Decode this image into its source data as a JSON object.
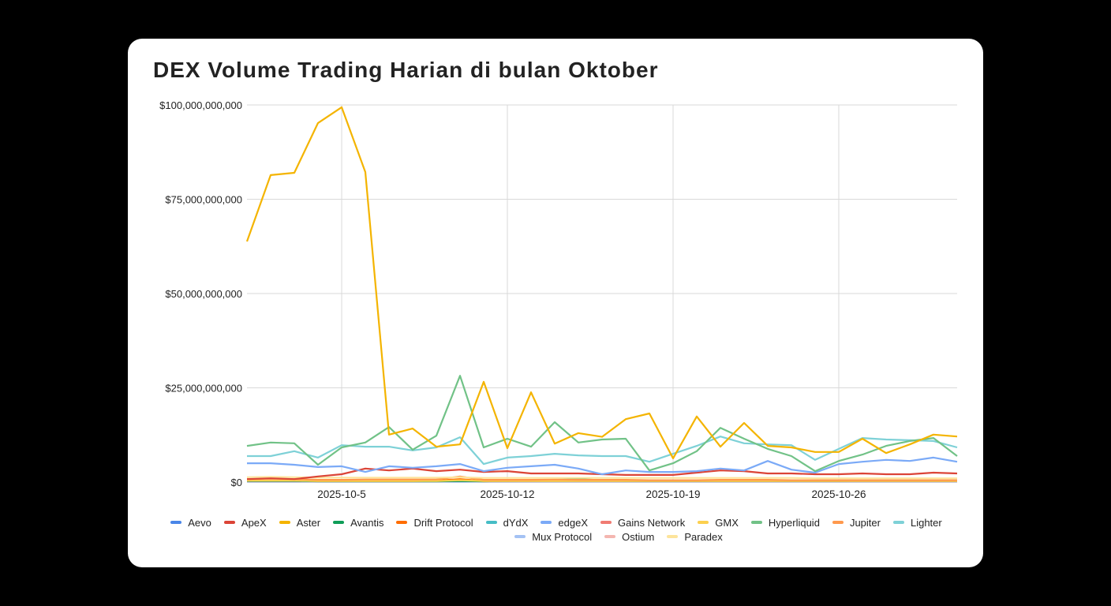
{
  "title": "DEX Volume Trading Harian di bulan Oktober",
  "chart_data": {
    "type": "line",
    "title": "DEX Volume Trading Harian di bulan Oktober",
    "xlabel": "",
    "ylabel": "",
    "ylim": [
      0,
      100000000000
    ],
    "y_ticks": [
      "$0",
      "$25,000,000,000",
      "$50,000,000,000",
      "$75,000,000,000",
      "$100,000,000,000"
    ],
    "x_ticks": [
      "2025-10-5",
      "2025-10-12",
      "2025-10-19",
      "2025-10-26"
    ],
    "x": [
      "2025-10-1",
      "2025-10-2",
      "2025-10-3",
      "2025-10-4",
      "2025-10-5",
      "2025-10-6",
      "2025-10-7",
      "2025-10-8",
      "2025-10-9",
      "2025-10-10",
      "2025-10-11",
      "2025-10-12",
      "2025-10-13",
      "2025-10-14",
      "2025-10-15",
      "2025-10-16",
      "2025-10-17",
      "2025-10-18",
      "2025-10-19",
      "2025-10-20",
      "2025-10-21",
      "2025-10-22",
      "2025-10-23",
      "2025-10-24",
      "2025-10-25",
      "2025-10-26",
      "2025-10-27",
      "2025-10-28",
      "2025-10-29",
      "2025-10-30",
      "2025-10-31"
    ],
    "grid": true,
    "legend_position": "bottom",
    "value_unit": "USD billions",
    "series": [
      {
        "name": "Aevo",
        "color": "#4a86e8",
        "values": [
          0.2,
          0.2,
          0.2,
          0.2,
          0.2,
          0.2,
          0.2,
          0.2,
          0.2,
          0.2,
          0.2,
          0.2,
          0.2,
          0.2,
          0.2,
          0.2,
          0.2,
          0.2,
          0.2,
          0.2,
          0.2,
          0.2,
          0.2,
          0.2,
          0.2,
          0.2,
          0.2,
          0.2,
          0.2,
          0.2,
          0.2
        ]
      },
      {
        "name": "ApeX",
        "color": "#db4437",
        "values": [
          0.8,
          1.0,
          0.8,
          1.5,
          2.1,
          3.6,
          3.1,
          3.6,
          2.9,
          3.3,
          2.7,
          2.9,
          2.3,
          2.3,
          2.3,
          2.1,
          1.9,
          1.9,
          1.9,
          2.5,
          3.1,
          2.9,
          2.3,
          2.3,
          2.1,
          2.1,
          2.3,
          2.1,
          2.1,
          2.5,
          2.3
        ]
      },
      {
        "name": "Aster",
        "color": "#f4b400",
        "values": [
          63.8,
          81.4,
          82.0,
          95.2,
          99.4,
          82.2,
          12.6,
          14.2,
          9.4,
          10.0,
          26.6,
          9.0,
          23.8,
          10.2,
          13.0,
          12.0,
          16.7,
          18.2,
          6.3,
          17.4,
          9.4,
          15.7,
          9.6,
          9.2,
          8.0,
          8.0,
          11.5,
          7.7,
          10.0,
          12.6,
          12.1
        ]
      },
      {
        "name": "Avantis",
        "color": "#0f9d58",
        "values": [
          0.3,
          0.3,
          0.3,
          0.2,
          0.2,
          0.2,
          0.2,
          0.2,
          0.2,
          0.3,
          0.2,
          0.3,
          0.4,
          0.6,
          0.8,
          0.5,
          0.3,
          0.3,
          0.3,
          0.3,
          0.3,
          0.3,
          0.3,
          0.3,
          0.3,
          0.3,
          0.4,
          0.4,
          0.4,
          0.4,
          0.4
        ]
      },
      {
        "name": "Drift Protocol",
        "color": "#ff6d00",
        "values": [
          0.4,
          0.4,
          0.4,
          0.3,
          0.3,
          0.3,
          0.3,
          0.3,
          0.4,
          0.8,
          0.3,
          0.3,
          0.3,
          0.3,
          0.3,
          0.3,
          0.3,
          0.3,
          0.3,
          0.3,
          0.3,
          0.3,
          0.3,
          0.3,
          0.3,
          0.3,
          0.3,
          0.3,
          0.3,
          0.3,
          0.3
        ]
      },
      {
        "name": "dYdX",
        "color": "#46bdc6",
        "values": [
          0.3,
          0.3,
          0.3,
          0.3,
          0.3,
          0.3,
          0.3,
          0.3,
          0.3,
          0.4,
          0.3,
          0.3,
          0.3,
          0.3,
          0.3,
          0.3,
          0.3,
          0.3,
          0.3,
          0.3,
          0.3,
          0.3,
          0.3,
          0.3,
          0.3,
          0.3,
          0.3,
          0.3,
          0.3,
          0.3,
          0.3
        ]
      },
      {
        "name": "edgeX",
        "color": "#7baaf7",
        "values": [
          5.0,
          5.0,
          4.6,
          4.0,
          4.2,
          2.7,
          4.2,
          3.8,
          4.2,
          4.8,
          2.9,
          3.8,
          4.2,
          4.6,
          3.6,
          2.1,
          3.1,
          2.7,
          2.7,
          2.9,
          3.6,
          3.1,
          5.6,
          3.3,
          2.5,
          4.8,
          5.4,
          5.9,
          5.6,
          6.5,
          5.4
        ]
      },
      {
        "name": "Gains Network",
        "color": "#f07b72",
        "values": [
          0.2,
          0.2,
          0.2,
          0.2,
          0.2,
          0.2,
          0.2,
          0.2,
          0.2,
          0.3,
          0.2,
          0.2,
          0.2,
          0.2,
          0.2,
          0.2,
          0.2,
          0.2,
          0.2,
          0.2,
          0.2,
          0.2,
          0.2,
          0.2,
          0.2,
          0.2,
          0.2,
          0.2,
          0.2,
          0.2,
          0.2
        ]
      },
      {
        "name": "GMX",
        "color": "#fcd04f",
        "values": [
          0.4,
          0.4,
          0.4,
          0.3,
          0.3,
          0.3,
          0.3,
          0.3,
          0.3,
          0.5,
          0.3,
          0.3,
          0.3,
          0.3,
          0.3,
          0.3,
          0.3,
          0.3,
          0.3,
          0.3,
          0.3,
          0.3,
          0.3,
          0.3,
          0.3,
          0.3,
          0.3,
          0.3,
          0.3,
          0.3,
          0.3
        ]
      },
      {
        "name": "Hyperliquid",
        "color": "#71c287",
        "values": [
          9.6,
          10.5,
          10.3,
          4.6,
          9.2,
          10.5,
          14.6,
          8.6,
          12.3,
          28.2,
          9.2,
          11.5,
          9.4,
          15.9,
          10.5,
          11.3,
          11.5,
          3.1,
          5.0,
          8.2,
          14.4,
          11.5,
          8.8,
          6.9,
          2.9,
          5.6,
          7.3,
          9.6,
          10.9,
          11.7,
          6.9
        ]
      },
      {
        "name": "Jupiter",
        "color": "#ff994d",
        "values": [
          0.8,
          0.9,
          0.8,
          0.6,
          0.6,
          0.7,
          0.7,
          0.7,
          0.7,
          1.5,
          0.6,
          0.6,
          0.6,
          0.7,
          0.6,
          0.6,
          0.6,
          0.5,
          0.5,
          0.5,
          0.6,
          0.6,
          0.6,
          0.5,
          0.5,
          0.5,
          0.5,
          0.5,
          0.5,
          0.5,
          0.5
        ]
      },
      {
        "name": "Lighter",
        "color": "#7ed1d7",
        "values": [
          6.9,
          6.9,
          8.2,
          6.5,
          9.8,
          9.4,
          9.4,
          8.4,
          9.2,
          11.9,
          4.8,
          6.5,
          6.9,
          7.5,
          7.1,
          6.9,
          6.9,
          5.4,
          7.5,
          9.6,
          12.1,
          10.3,
          10.0,
          9.8,
          5.9,
          8.8,
          11.7,
          11.3,
          11.1,
          10.9,
          9.2
        ]
      },
      {
        "name": "Mux Protocol",
        "color": "#a4c2f4",
        "values": [
          0.1,
          0.1,
          0.1,
          0.1,
          0.1,
          0.1,
          0.1,
          0.1,
          0.1,
          0.1,
          0.1,
          0.1,
          0.1,
          0.1,
          0.1,
          0.1,
          0.1,
          0.1,
          0.1,
          0.1,
          0.1,
          0.1,
          0.1,
          0.1,
          0.1,
          0.1,
          0.1,
          0.1,
          0.1,
          0.1,
          0.1
        ]
      },
      {
        "name": "Ostium",
        "color": "#f4b6b0",
        "values": [
          0.2,
          0.2,
          0.2,
          0.2,
          0.2,
          0.2,
          0.2,
          0.2,
          0.2,
          0.2,
          0.2,
          0.2,
          0.2,
          0.2,
          0.2,
          0.2,
          0.2,
          0.2,
          0.2,
          0.2,
          0.2,
          0.2,
          0.2,
          0.2,
          0.2,
          0.2,
          0.2,
          0.2,
          0.2,
          0.2,
          0.2
        ]
      },
      {
        "name": "Paradex",
        "color": "#fde49b",
        "values": [
          1.3,
          1.4,
          1.3,
          1.2,
          1.2,
          1.2,
          1.2,
          1.2,
          1.2,
          1.3,
          1.1,
          1.1,
          1.1,
          1.1,
          1.1,
          1.1,
          1.1,
          1.1,
          1.1,
          1.1,
          1.1,
          1.1,
          1.1,
          1.1,
          1.0,
          1.0,
          1.0,
          1.0,
          1.0,
          1.0,
          1.0
        ]
      }
    ]
  },
  "legend": {
    "row1": [
      "Aevo",
      "ApeX",
      "Aster",
      "Avantis",
      "Drift Protocol",
      "dYdX",
      "edgeX",
      "Gains Network",
      "GMX",
      "Hyperliquid",
      "Jupiter",
      "Lighter"
    ],
    "row2": [
      "Mux Protocol",
      "Ostium",
      "Paradex"
    ]
  }
}
